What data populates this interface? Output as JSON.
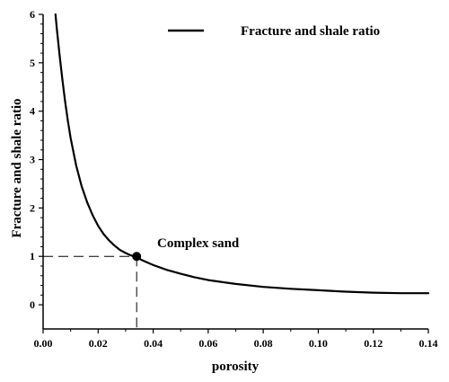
{
  "chart_data": {
    "type": "line",
    "title": "",
    "xlabel": "porosity",
    "ylabel": "Fracture and shale ratio",
    "xlim": [
      0.0,
      0.14
    ],
    "ylim": [
      -0.5,
      6.0
    ],
    "x_ticks": [
      0.0,
      0.02,
      0.04,
      0.06,
      0.08,
      0.1,
      0.12,
      0.14
    ],
    "x_tick_labels": [
      "0.00",
      "0.02",
      "0.04",
      "0.06",
      "0.08",
      "0.10",
      "0.12",
      "0.14"
    ],
    "y_ticks": [
      0,
      1,
      2,
      3,
      4,
      5,
      6
    ],
    "y_tick_labels": [
      "0",
      "1",
      "2",
      "3",
      "4",
      "5",
      "6"
    ],
    "grid": false,
    "legend_position": "top-right",
    "series": [
      {
        "name": "Fracture and shale ratio",
        "color": "#000000",
        "x": [
          0.0045,
          0.005,
          0.006,
          0.007,
          0.008,
          0.009,
          0.01,
          0.012,
          0.014,
          0.016,
          0.018,
          0.02,
          0.022,
          0.024,
          0.026,
          0.028,
          0.03,
          0.032,
          0.034,
          0.036,
          0.04,
          0.045,
          0.05,
          0.055,
          0.06,
          0.07,
          0.08,
          0.09,
          0.1,
          0.11,
          0.12,
          0.13,
          0.14
        ],
        "y": [
          6.0,
          5.7,
          5.15,
          4.65,
          4.2,
          3.8,
          3.45,
          2.88,
          2.45,
          2.12,
          1.85,
          1.63,
          1.46,
          1.33,
          1.22,
          1.13,
          1.07,
          1.02,
          0.98,
          0.92,
          0.82,
          0.72,
          0.64,
          0.57,
          0.51,
          0.43,
          0.37,
          0.33,
          0.3,
          0.27,
          0.25,
          0.24,
          0.24
        ]
      }
    ],
    "annotations": [
      {
        "text": "Complex sand",
        "x": 0.034,
        "y": 1.0
      }
    ]
  }
}
